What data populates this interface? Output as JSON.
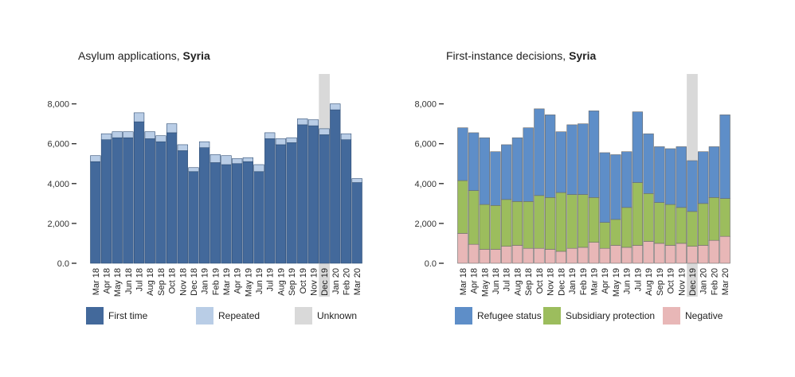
{
  "charts": {
    "left": {
      "title_prefix": "Asylum applications, ",
      "title_bold": "Syria"
    },
    "right": {
      "title_prefix": "First-instance decisions, ",
      "title_bold": "Syria"
    }
  },
  "colors": {
    "first_time": "#43699b",
    "repeated": "#b9cde6",
    "unknown": "#d9d9d9",
    "refugee": "#5e8ec8",
    "subsidiary": "#9cbd5d",
    "negative": "#e8b7b7",
    "edge_left": "#2e4d74",
    "edge_right": "#6b6b6b"
  },
  "chart_data": [
    {
      "type": "bar",
      "stacked": true,
      "title": "Asylum applications, Syria",
      "categories": [
        "Mar 18",
        "Apr 18",
        "May 18",
        "Jun 18",
        "Jul 18",
        "Aug 18",
        "Sep 18",
        "Oct 18",
        "Nov 18",
        "Dec 18",
        "Jan 19",
        "Feb 19",
        "Mar 19",
        "Apr 19",
        "May 19",
        "Jun 19",
        "Jul 19",
        "Aug 19",
        "Sep 19",
        "Oct 19",
        "Nov 19",
        "Dec 19",
        "Jan 20",
        "Feb 20",
        "Mar 20"
      ],
      "series": [
        {
          "name": "First time",
          "values": [
            5100,
            6200,
            6300,
            6300,
            7100,
            6250,
            6100,
            6550,
            5650,
            4600,
            5800,
            5050,
            4950,
            5000,
            5100,
            4600,
            6250,
            5950,
            6050,
            6950,
            6900,
            6450,
            7700,
            6200,
            4050
          ]
        },
        {
          "name": "Repeated",
          "values": [
            300,
            300,
            300,
            300,
            450,
            350,
            300,
            450,
            300,
            200,
            300,
            400,
            450,
            250,
            200,
            350,
            300,
            300,
            250,
            300,
            300,
            300,
            300,
            300,
            200
          ]
        },
        {
          "name": "Unknown",
          "values": [
            0,
            0,
            0,
            0,
            0,
            0,
            0,
            0,
            0,
            0,
            0,
            0,
            0,
            0,
            0,
            0,
            0,
            0,
            0,
            0,
            0,
            0,
            0,
            0,
            0
          ]
        }
      ],
      "highlight_category": "Dec 19",
      "ylim": [
        0,
        9500
      ],
      "yticks": [
        "0.0",
        "2,000",
        "4,000",
        "6,000",
        "8,000"
      ],
      "ytick_values": [
        0,
        2000,
        4000,
        6000,
        8000
      ],
      "legend": [
        "First time",
        "Repeated",
        "Unknown"
      ],
      "legend_position": "bottom"
    },
    {
      "type": "bar",
      "stacked": true,
      "title": "First-instance decisions, Syria",
      "categories": [
        "Mar 18",
        "Apr 18",
        "May 18",
        "Jun 18",
        "Jul 18",
        "Aug 18",
        "Sep 18",
        "Oct 18",
        "Nov 18",
        "Dec 18",
        "Jan 19",
        "Feb 19",
        "Mar 19",
        "Apr 19",
        "May 19",
        "Jun 19",
        "Jul 19",
        "Aug 19",
        "Sep 19",
        "Oct 19",
        "Nov 19",
        "Dec 19",
        "Jan 20",
        "Feb 20",
        "Mar 20"
      ],
      "series": [
        {
          "name": "Negative",
          "values": [
            1500,
            950,
            700,
            700,
            850,
            900,
            750,
            750,
            700,
            600,
            750,
            800,
            1050,
            750,
            900,
            800,
            900,
            1100,
            1000,
            900,
            1000,
            850,
            900,
            1150,
            1350
          ]
        },
        {
          "name": "Subsidiary protection",
          "values": [
            2650,
            2700,
            2250,
            2200,
            2350,
            2200,
            2350,
            2650,
            2600,
            2950,
            2700,
            2650,
            2250,
            1300,
            1300,
            2000,
            3150,
            2400,
            2050,
            2050,
            1800,
            1750,
            2100,
            2150,
            1900
          ]
        },
        {
          "name": "Refugee status",
          "values": [
            2650,
            2900,
            3350,
            2700,
            2750,
            3200,
            3700,
            4350,
            4150,
            3050,
            3500,
            3550,
            4350,
            3500,
            3250,
            2800,
            3550,
            3000,
            2800,
            2800,
            3050,
            2550,
            2600,
            2550,
            4200
          ]
        }
      ],
      "highlight_category": "Dec 19",
      "ylim": [
        0,
        9500
      ],
      "yticks": [
        "0.0",
        "2,000",
        "4,000",
        "6,000",
        "8,000"
      ],
      "ytick_values": [
        0,
        2000,
        4000,
        6000,
        8000
      ],
      "legend": [
        "Refugee status",
        "Subsidiary protection",
        "Negative"
      ],
      "legend_position": "bottom"
    }
  ]
}
